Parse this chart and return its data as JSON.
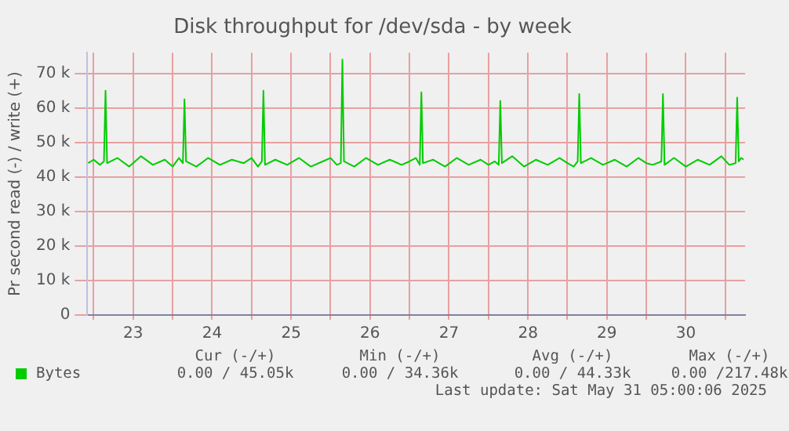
{
  "chart_data": {
    "type": "line",
    "title": "Disk throughput for /dev/sda - by week",
    "ylabel": "Pr second read (-) / write (+)",
    "x": [
      22.93,
      23.0,
      23.08,
      23.13,
      23.15,
      23.17,
      23.3,
      23.45,
      23.6,
      23.75,
      23.9,
      24.0,
      24.08,
      24.13,
      24.15,
      24.17,
      24.3,
      24.45,
      24.6,
      24.75,
      24.9,
      25.0,
      25.08,
      25.13,
      25.15,
      25.17,
      25.3,
      25.45,
      25.6,
      25.75,
      25.9,
      26.0,
      26.08,
      26.13,
      26.15,
      26.17,
      26.3,
      26.45,
      26.6,
      26.75,
      26.9,
      27.0,
      27.08,
      27.13,
      27.15,
      27.17,
      27.3,
      27.45,
      27.6,
      27.75,
      27.9,
      28.0,
      28.08,
      28.13,
      28.15,
      28.17,
      28.3,
      28.45,
      28.6,
      28.75,
      28.9,
      29.0,
      29.08,
      29.13,
      29.15,
      29.17,
      29.3,
      29.45,
      29.6,
      29.75,
      29.9,
      30.0,
      30.08,
      30.19,
      30.21,
      30.23,
      30.35,
      30.5,
      30.65,
      30.8,
      30.95,
      31.05,
      31.13,
      31.15,
      31.17,
      31.2,
      31.23
    ],
    "series": [
      {
        "name": "Bytes",
        "color": "#00cc00",
        "values": [
          44000,
          45000,
          43500,
          44500,
          65000,
          44000,
          45500,
          43000,
          46000,
          43500,
          45000,
          43000,
          45500,
          44000,
          62500,
          44500,
          43000,
          45500,
          43500,
          45000,
          44000,
          45500,
          43000,
          44500,
          65000,
          43500,
          45000,
          43500,
          45500,
          43000,
          44500,
          45500,
          43500,
          44000,
          74000,
          44500,
          43000,
          45500,
          43500,
          45000,
          43500,
          44500,
          45500,
          43500,
          64500,
          44000,
          45000,
          43000,
          45500,
          43500,
          45000,
          43500,
          44500,
          43500,
          62000,
          44000,
          46000,
          43000,
          45000,
          43500,
          45500,
          44000,
          43000,
          44500,
          64000,
          44000,
          45500,
          43500,
          45000,
          43000,
          45500,
          44000,
          43500,
          44500,
          64000,
          43500,
          45500,
          43000,
          45000,
          43500,
          46000,
          43500,
          44000,
          63000,
          44500,
          45500,
          45000
        ]
      }
    ],
    "xlim": [
      22.92,
      31.25
    ],
    "xticks": [
      {
        "value": 23,
        "label": null
      },
      {
        "value": 23.5,
        "label": "23"
      },
      {
        "value": 24,
        "label": null
      },
      {
        "value": 24.5,
        "label": "24"
      },
      {
        "value": 25,
        "label": null
      },
      {
        "value": 25.5,
        "label": "25"
      },
      {
        "value": 26,
        "label": null
      },
      {
        "value": 26.5,
        "label": "26"
      },
      {
        "value": 27,
        "label": null
      },
      {
        "value": 27.5,
        "label": "27"
      },
      {
        "value": 28,
        "label": null
      },
      {
        "value": 28.5,
        "label": "28"
      },
      {
        "value": 29,
        "label": null
      },
      {
        "value": 29.5,
        "label": "29"
      },
      {
        "value": 30,
        "label": null
      },
      {
        "value": 30.5,
        "label": "30"
      },
      {
        "value": 31,
        "label": null
      }
    ],
    "ylim": [
      0,
      76000
    ],
    "yticks": [
      {
        "value": 0,
        "label": "0"
      },
      {
        "value": 10000,
        "label": "10 k"
      },
      {
        "value": 20000,
        "label": "20 k"
      },
      {
        "value": 30000,
        "label": "30 k"
      },
      {
        "value": 40000,
        "label": "40 k"
      },
      {
        "value": 50000,
        "label": "50 k"
      },
      {
        "value": 60000,
        "label": "60 k"
      },
      {
        "value": 70000,
        "label": "70 k"
      }
    ],
    "grid": true,
    "legend": "bottom left",
    "marker": "none",
    "line_style": "solid",
    "annotations": [
      "Cur (-/+)",
      "Min (-/+)",
      "Avg (-/+)",
      "Max (-/+)",
      "0.00 / 45.05k",
      "0.00 / 34.36k",
      "0.00 / 44.33k",
      "0.00 /217.48k",
      "Last update: Sat May 31 05:00:06 2025"
    ]
  }
}
